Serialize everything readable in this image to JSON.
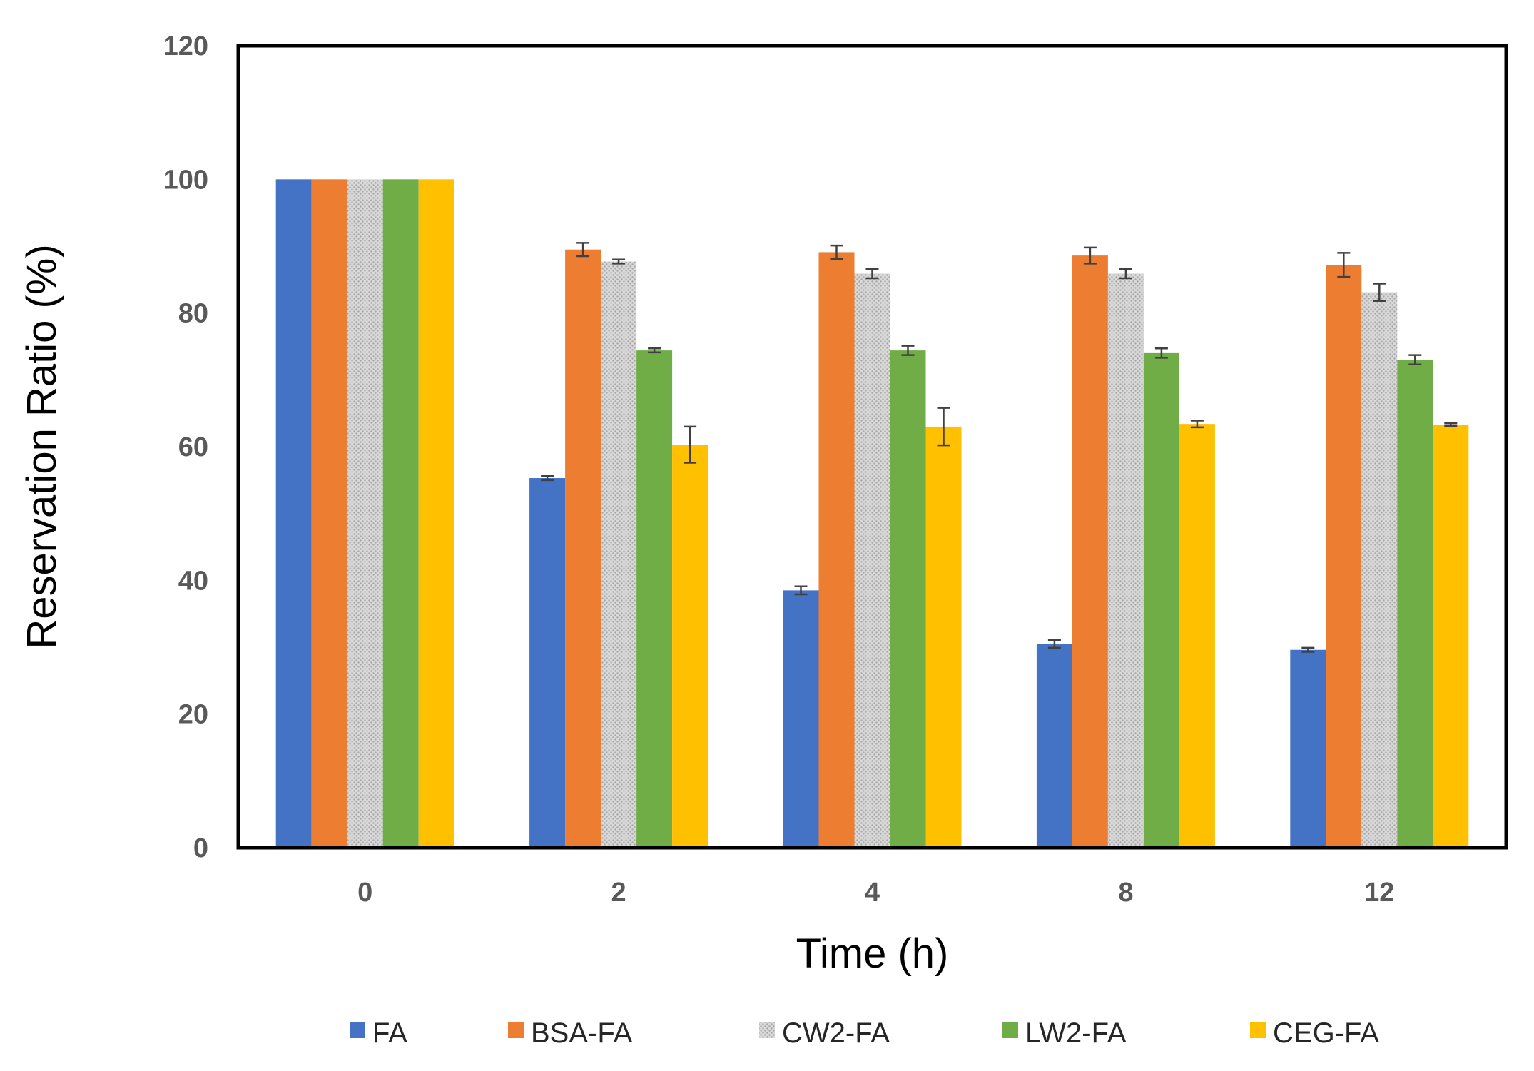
{
  "chart_data": {
    "type": "bar",
    "title": "",
    "xlabel": "Time (h)",
    "ylabel": "Reservation Ratio (%)",
    "ylim": [
      0,
      120
    ],
    "yticks": [
      "0",
      "20",
      "40",
      "60",
      "80",
      "100",
      "120"
    ],
    "categories": [
      "0",
      "2",
      "4",
      "8",
      "12"
    ],
    "legend_position": "bottom",
    "grid": false,
    "series": [
      {
        "name": "FA",
        "color": "#4472C4",
        "pattern": "solid",
        "values": [
          100,
          55.3,
          38.5,
          30.5,
          29.6
        ],
        "errors": [
          0,
          0.3,
          0.6,
          0.6,
          0.3
        ]
      },
      {
        "name": "BSA-FA",
        "color": "#ED7D31",
        "pattern": "solid",
        "values": [
          100,
          89.5,
          89.1,
          88.6,
          87.2
        ],
        "errors": [
          0,
          1.0,
          1.0,
          1.2,
          1.8
        ]
      },
      {
        "name": "CW2-FA",
        "color": "#C8C8C8",
        "pattern": "dotted",
        "values": [
          100,
          87.7,
          85.9,
          85.9,
          83.1
        ],
        "errors": [
          0,
          0.3,
          0.7,
          0.7,
          1.3
        ]
      },
      {
        "name": "LW2-FA",
        "color": "#70AD47",
        "pattern": "solid",
        "values": [
          100,
          74.4,
          74.4,
          74.0,
          73.0
        ],
        "errors": [
          0,
          0.3,
          0.7,
          0.7,
          0.7
        ]
      },
      {
        "name": "CEG-FA",
        "color": "#FFC000",
        "pattern": "solid",
        "values": [
          100,
          60.3,
          63.0,
          63.4,
          63.3
        ],
        "errors": [
          0,
          2.7,
          2.8,
          0.5,
          0.2
        ]
      }
    ]
  }
}
